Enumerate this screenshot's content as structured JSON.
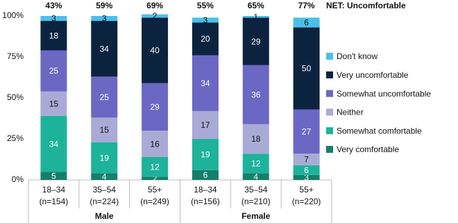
{
  "chart_data": {
    "type": "stacked_bar",
    "categories": [
      [
        "18–34",
        "(n=154)"
      ],
      [
        "35–54",
        "(n=224)"
      ],
      [
        "55+",
        "(n=249)"
      ],
      [
        "18–34",
        "(n=156)"
      ],
      [
        "35–54",
        "(n=210)"
      ],
      [
        "55+",
        "(n=220)"
      ]
    ],
    "groups": [
      "Male",
      "Female"
    ],
    "series": [
      {
        "name": "Very comfortable",
        "color": "#147f6c",
        "values": [
          5,
          4,
          2,
          6,
          4,
          3
        ]
      },
      {
        "name": "Somewhat comfortable",
        "color": "#1db39a",
        "values": [
          34,
          19,
          12,
          19,
          12,
          6
        ]
      },
      {
        "name": "Neither",
        "color": "#a9aad6",
        "values": [
          15,
          15,
          16,
          17,
          18,
          7
        ]
      },
      {
        "name": "Somewhat uncomfortable",
        "color": "#6b68c4",
        "values": [
          25,
          25,
          29,
          34,
          36,
          27
        ]
      },
      {
        "name": "Very uncomfortable",
        "color": "#0c2340",
        "values": [
          18,
          34,
          40,
          20,
          29,
          50
        ]
      },
      {
        "name": "Don't know",
        "color": "#4cbfe8",
        "values": [
          3,
          3,
          2,
          3,
          1,
          6
        ]
      }
    ],
    "net": {
      "label": "NET: Uncomfortable",
      "values": [
        43,
        59,
        69,
        55,
        65,
        77
      ],
      "value_labels": [
        "43%",
        "59%",
        "69%",
        "55%",
        "65%",
        "77%"
      ]
    },
    "ylim": [
      0,
      100
    ],
    "yticks": [
      {
        "value": 0,
        "label": "0%"
      },
      {
        "value": 25,
        "label": "25%"
      },
      {
        "value": 50,
        "label": "50%"
      },
      {
        "value": 75,
        "label": "75%"
      },
      {
        "value": 100,
        "label": "100%"
      }
    ],
    "legend": "right"
  }
}
